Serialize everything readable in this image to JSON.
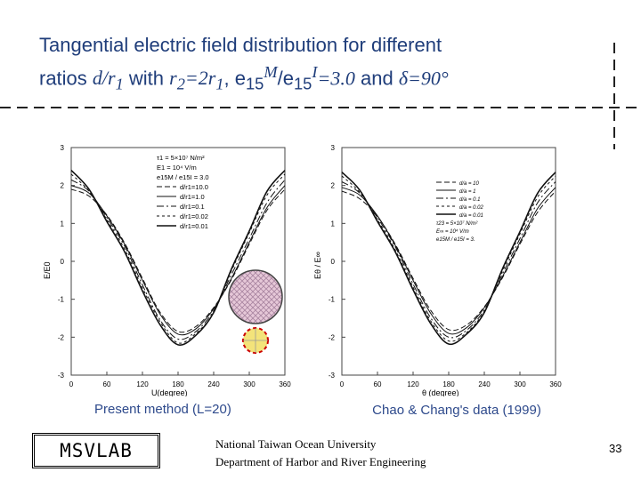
{
  "slide": {
    "title_line1": "Tangential electric field distribution for different",
    "title_ratios": "ratios",
    "title_d": "d/r",
    "title_sub1": "1",
    "title_with": "with",
    "title_r2": "r",
    "title_r2sub": "2",
    "title_eq": "=2r",
    "title_eq_sub": "1",
    "title_comma": ", e",
    "title_e15": "15",
    "title_M": "M",
    "title_slash": "/e",
    "title_e15b": "15",
    "title_I": "I",
    "title_val": "=3.0",
    "title_and": "and",
    "title_delta": "δ",
    "title_angle": "=90°",
    "caption_left": "Present method (L=20)",
    "caption_right": "Chao & Chang's data (1999)",
    "logo_text": "MSVLAB",
    "university": "National Taiwan Ocean University",
    "department": "Department of Harbor and River Engineering",
    "page_number": "33"
  },
  "colors": {
    "title": "#1f3d7a",
    "caption": "#2e4a8c",
    "inclusion_fill": "#e6c8d8",
    "inclusion_stroke": "#cc0000",
    "small_fill": "#f3e37a"
  },
  "chart_data": [
    {
      "type": "line",
      "xlabel": "U(degree)",
      "ylabel": "E/E0",
      "xlim": [
        0,
        360
      ],
      "ylim": [
        -3,
        3
      ],
      "xticks": [
        "0",
        "60",
        "120",
        "180",
        "240",
        "300",
        "360"
      ],
      "yticks": [
        "3",
        "2",
        "1",
        "0",
        "-1",
        "-2",
        "-3"
      ],
      "legend_header": [
        "τ1 = 5×10⁷ N/m²",
        "E1 = 10⁴ V/m",
        "e15M / e15I = 3.0"
      ],
      "series": [
        {
          "name": "d/r1=10.0",
          "x": [
            0,
            30,
            60,
            90,
            120,
            150,
            180,
            210,
            240,
            270,
            300,
            330,
            360
          ],
          "values": [
            1.9,
            1.72,
            1.22,
            0.48,
            -0.45,
            -1.35,
            -1.85,
            -1.72,
            -1.22,
            -0.48,
            0.45,
            1.35,
            1.9
          ]
        },
        {
          "name": "d/r1=1.0",
          "x": [
            0,
            30,
            60,
            90,
            120,
            150,
            180,
            210,
            240,
            270,
            300,
            330,
            360
          ],
          "values": [
            2.0,
            1.8,
            1.2,
            0.45,
            -0.5,
            -1.4,
            -1.92,
            -1.78,
            -1.25,
            -0.45,
            0.5,
            1.42,
            2.0
          ]
        },
        {
          "name": "d/r1=0.1",
          "x": [
            0,
            30,
            60,
            90,
            120,
            150,
            180,
            210,
            240,
            270,
            300,
            330,
            360
          ],
          "values": [
            2.15,
            1.85,
            1.15,
            0.4,
            -0.62,
            -1.55,
            -2.05,
            -1.85,
            -1.3,
            -0.35,
            0.6,
            1.55,
            2.15
          ]
        },
        {
          "name": "d/r1=0.02",
          "x": [
            0,
            30,
            60,
            90,
            120,
            150,
            180,
            210,
            240,
            270,
            300,
            330,
            360
          ],
          "values": [
            2.3,
            1.85,
            1.1,
            0.32,
            -0.7,
            -1.6,
            -2.15,
            -1.9,
            -1.35,
            -0.25,
            0.75,
            1.75,
            2.3
          ]
        },
        {
          "name": "d/r1=0.01",
          "x": [
            0,
            30,
            60,
            90,
            120,
            150,
            180,
            210,
            240,
            270,
            300,
            330,
            360
          ],
          "values": [
            2.4,
            1.9,
            1.05,
            0.25,
            -0.78,
            -1.68,
            -2.2,
            -1.95,
            -1.35,
            -0.2,
            0.8,
            1.85,
            2.4
          ]
        }
      ]
    },
    {
      "type": "line",
      "xlabel": "θ (degree)",
      "ylabel": "Eθ / E∞",
      "xlim": [
        0,
        360
      ],
      "ylim": [
        -3,
        3
      ],
      "xticks": [
        "0",
        "60",
        "120",
        "180",
        "240",
        "300",
        "360"
      ],
      "yticks": [
        "3",
        "2",
        "1",
        "0",
        "-1",
        "-2",
        "-3"
      ],
      "legend_header": [],
      "legend_footer": [
        "τ23 = 5×10⁷ N/m²",
        "E∞ = 10⁴ V/m",
        "e15M / e15I = 3."
      ],
      "series": [
        {
          "name": "d/a = 10",
          "x": [
            0,
            30,
            60,
            90,
            120,
            150,
            180,
            210,
            240,
            270,
            300,
            330,
            360
          ],
          "values": [
            1.85,
            1.65,
            1.18,
            0.45,
            -0.45,
            -1.3,
            -1.8,
            -1.68,
            -1.2,
            -0.45,
            0.45,
            1.3,
            1.85
          ]
        },
        {
          "name": "d/a = 1",
          "x": [
            0,
            30,
            60,
            90,
            120,
            150,
            180,
            210,
            240,
            270,
            300,
            330,
            360
          ],
          "values": [
            1.95,
            1.75,
            1.2,
            0.42,
            -0.5,
            -1.38,
            -1.9,
            -1.75,
            -1.22,
            -0.42,
            0.5,
            1.4,
            1.95
          ]
        },
        {
          "name": "d/a = 0.1",
          "x": [
            0,
            30,
            60,
            90,
            120,
            150,
            180,
            210,
            240,
            270,
            300,
            330,
            360
          ],
          "values": [
            2.1,
            1.8,
            1.15,
            0.38,
            -0.6,
            -1.5,
            -2.0,
            -1.82,
            -1.28,
            -0.35,
            0.6,
            1.55,
            2.1
          ]
        },
        {
          "name": "d/a = 0.02",
          "x": [
            0,
            30,
            60,
            90,
            120,
            150,
            180,
            210,
            240,
            270,
            300,
            330,
            360
          ],
          "values": [
            2.25,
            1.82,
            1.1,
            0.3,
            -0.68,
            -1.58,
            -2.1,
            -1.88,
            -1.32,
            -0.28,
            0.72,
            1.7,
            2.25
          ]
        },
        {
          "name": "d/a = 0.01",
          "x": [
            0,
            30,
            60,
            90,
            120,
            150,
            180,
            210,
            240,
            270,
            300,
            330,
            360
          ],
          "values": [
            2.35,
            1.88,
            1.05,
            0.25,
            -0.75,
            -1.65,
            -2.18,
            -1.92,
            -1.35,
            -0.22,
            0.78,
            1.8,
            2.35
          ]
        }
      ]
    }
  ]
}
